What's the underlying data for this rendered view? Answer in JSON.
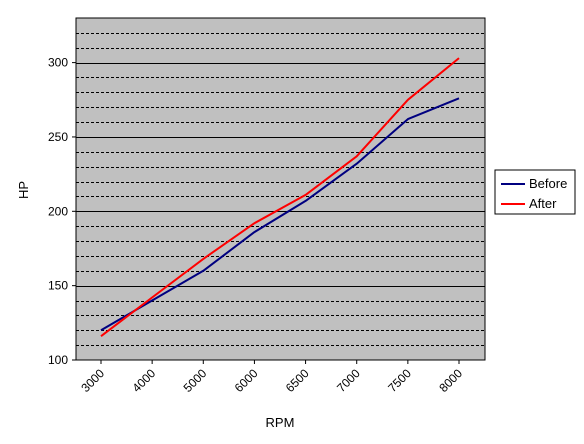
{
  "chart_data": {
    "type": "line",
    "categories": [
      "3000",
      "4000",
      "5000",
      "6000",
      "6500",
      "7000",
      "7500",
      "8000"
    ],
    "series": [
      {
        "name": "Before",
        "color": "#000080",
        "values": [
          120,
          140,
          160,
          186,
          207,
          232,
          262,
          276
        ]
      },
      {
        "name": "After",
        "color": "#ff0000",
        "values": [
          116,
          142,
          168,
          192,
          211,
          237,
          275,
          303
        ]
      }
    ],
    "xlabel": "RPM",
    "ylabel": "HP",
    "ylim": [
      100,
      330
    ],
    "yticks": [
      100,
      150,
      200,
      250,
      300
    ],
    "ytick_labels": [
      "100",
      "150",
      "200",
      "250",
      "300"
    ],
    "minor_grid_step": 10,
    "major_grid_step": 50,
    "plot_background": "#c0c0c0",
    "legend": "right",
    "grid": true
  }
}
